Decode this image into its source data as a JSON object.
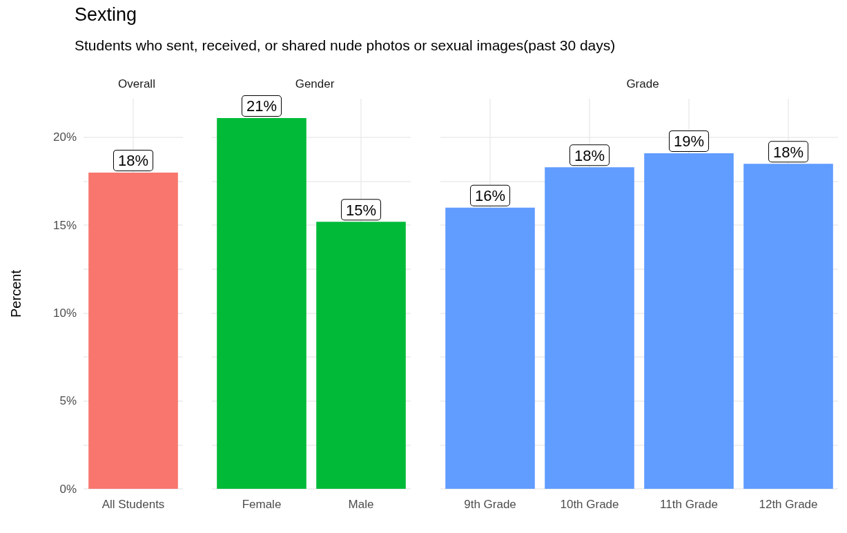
{
  "chart_data": [
    {
      "type": "bar",
      "title": "Sexting",
      "subtitle": "Students who sent, received, or shared nude photos or sexual images(past 30 days)",
      "ylabel": "Percent",
      "annotations": [
        "Overall"
      ],
      "categories": [
        "All Students"
      ],
      "series": [
        {
          "color": "#f8766d",
          "values": [
            18.0
          ],
          "value_labels": [
            "18%"
          ]
        }
      ],
      "ylim": [
        0,
        22.2
      ],
      "yticks": [
        {
          "value": 0,
          "label": "0%"
        },
        {
          "value": 2.5,
          "label": null
        },
        {
          "value": 5,
          "label": "5%"
        },
        {
          "value": 7.5,
          "label": null
        },
        {
          "value": 10,
          "label": "10%"
        },
        {
          "value": 12.5,
          "label": null
        },
        {
          "value": 15,
          "label": "15%"
        },
        {
          "value": 17.5,
          "label": null
        },
        {
          "value": 20,
          "label": "20%"
        }
      ],
      "grid": true
    },
    {
      "type": "bar",
      "annotations": [
        "Gender"
      ],
      "categories": [
        "Female",
        "Male"
      ],
      "series": [
        {
          "color": "#00ba38",
          "values": [
            21.1,
            15.2
          ],
          "value_labels": [
            "21%",
            "15%"
          ]
        }
      ],
      "ylim": [
        0,
        22.2
      ],
      "yticks": [
        {
          "value": 0,
          "label": null
        },
        {
          "value": 2.5,
          "label": null
        },
        {
          "value": 5,
          "label": null
        },
        {
          "value": 7.5,
          "label": null
        },
        {
          "value": 10,
          "label": null
        },
        {
          "value": 12.5,
          "label": null
        },
        {
          "value": 15,
          "label": null
        },
        {
          "value": 17.5,
          "label": null
        },
        {
          "value": 20,
          "label": null
        }
      ],
      "grid": true,
      "tick_labels": "x"
    },
    {
      "type": "bar",
      "annotations": [
        "Grade"
      ],
      "categories": [
        "9th Grade",
        "10th Grade",
        "11th Grade",
        "12th Grade"
      ],
      "series": [
        {
          "color": "#619cff",
          "values": [
            16.0,
            18.3,
            19.1,
            18.5
          ],
          "value_labels": [
            "16%",
            "18%",
            "19%",
            "18%"
          ]
        }
      ],
      "ylim": [
        0,
        22.2
      ],
      "yticks": [
        {
          "value": 0,
          "label": null
        },
        {
          "value": 2.5,
          "label": null
        },
        {
          "value": 5,
          "label": null
        },
        {
          "value": 7.5,
          "label": null
        },
        {
          "value": 10,
          "label": null
        },
        {
          "value": 12.5,
          "label": null
        },
        {
          "value": 15,
          "label": null
        },
        {
          "value": 17.5,
          "label": null
        },
        {
          "value": 20,
          "label": null
        }
      ],
      "grid": true,
      "tick_labels": "x"
    }
  ]
}
